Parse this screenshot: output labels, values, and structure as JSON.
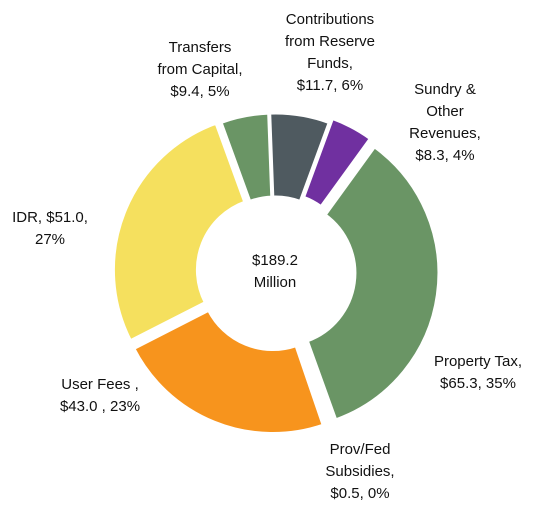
{
  "chart_data": {
    "type": "donut",
    "labels": [
      [
        "Transfers",
        "from Capital,",
        "$9.4, 5%"
      ],
      [
        "Contributions",
        "from Reserve",
        "Funds,",
        "$11.7, 6%"
      ],
      [
        "Sundry &",
        "Other",
        "Revenues,",
        "$8.3, 4%"
      ],
      [
        "Property Tax,",
        "$65.3, 35%"
      ],
      [
        "Prov/Fed",
        "Subsidies,",
        "$0.5, 0%"
      ],
      [
        "User Fees ,",
        "$43.0 , 23%"
      ],
      [
        "IDR,  $51.0,",
        "27%"
      ]
    ],
    "values": [
      9.4,
      11.7,
      8.3,
      65.3,
      0.5,
      43.0,
      51.0
    ],
    "percents": [
      5,
      6,
      4,
      35,
      0,
      23,
      27
    ],
    "colors": [
      "#6a9565",
      "#4f5a60",
      "#7030a0",
      "#6a9565",
      "#2f4f7f",
      "#f7941d",
      "#f5e05e"
    ],
    "center_label": [
      "$189.2",
      "Million"
    ]
  }
}
